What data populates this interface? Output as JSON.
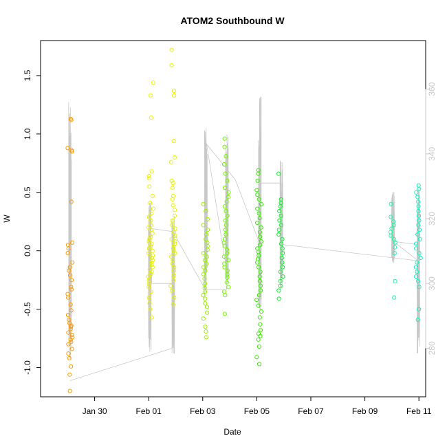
{
  "chart_data": {
    "type": "scatter",
    "title": "ATOM2 Southbound W",
    "xlabel": "Date",
    "ylabel": "W",
    "xlim": [
      "2014-01-28",
      "2014-02-11T06:00"
    ],
    "ylim": [
      -1.25,
      1.8
    ],
    "y2lim": [
      265,
      375
    ],
    "x_ticks": [
      "Jan 30",
      "Feb 01",
      "Feb 03",
      "Feb 05",
      "Feb 07",
      "Feb 09",
      "Feb 11"
    ],
    "x_tick_dates": [
      "2014-01-30",
      "2014-02-01",
      "2014-02-03",
      "2014-02-05",
      "2014-02-07",
      "2014-02-09",
      "2014-02-11"
    ],
    "y_ticks": [
      -1.0,
      -0.5,
      0.0,
      0.5,
      1.0,
      1.5
    ],
    "y_tick_labels": [
      "-1.0",
      "-0.5",
      "0.0",
      "0.5",
      "1.0",
      "1.5"
    ],
    "y2_ticks": [
      280,
      300,
      320,
      340,
      360
    ],
    "y2_tick_labels": [
      "280",
      "300",
      "320",
      "340",
      "360"
    ],
    "grid": false,
    "legend": "none",
    "secondary_line_color": "#c8c8c8",
    "clusters": [
      {
        "time": "2014-01-29T02:10",
        "color": "#ff9a00",
        "w_values": [
          1.13,
          1.12,
          0.88,
          0.86,
          0.85,
          0.42,
          0.07,
          0.05,
          0.02,
          -0.02,
          -0.1,
          -0.14,
          -0.17,
          -0.21,
          -0.25,
          -0.31,
          -0.33,
          -0.37,
          -0.4,
          -0.46,
          -0.51,
          -0.55,
          -0.59,
          -0.62,
          -0.64,
          -0.65,
          -0.67,
          -0.7,
          -0.72,
          -0.74,
          -0.76,
          -0.78,
          -0.8,
          -0.84,
          -0.88,
          -0.92,
          -0.99,
          -1.06,
          -1.2
        ]
      },
      {
        "time": "2014-02-01T02:00",
        "color": "#ecf200",
        "w_values": [
          1.44,
          1.33,
          1.14,
          0.68,
          0.64,
          0.62,
          0.55,
          0.47,
          0.41,
          0.36,
          0.32,
          0.29,
          0.26,
          0.22,
          0.2,
          0.18,
          0.15,
          0.12,
          0.1,
          0.08,
          0.06,
          0.04,
          0.02,
          0.0,
          -0.02,
          -0.04,
          -0.06,
          -0.08,
          -0.1,
          -0.12,
          -0.14,
          -0.16,
          -0.18,
          -0.2,
          -0.22,
          -0.25,
          -0.28,
          -0.31,
          -0.35,
          -0.4,
          -0.45,
          -0.5,
          -0.57
        ]
      },
      {
        "time": "2014-02-01T21:30",
        "color": "#e2f500",
        "w_values": [
          1.72,
          1.59,
          1.37,
          1.33,
          0.94,
          0.8,
          0.76,
          0.6,
          0.58,
          0.54,
          0.47,
          0.44,
          0.39,
          0.35,
          0.3,
          0.26,
          0.22,
          0.19,
          0.16,
          0.13,
          0.1,
          0.08,
          0.06,
          0.04,
          0.02,
          0.0,
          -0.02,
          -0.05,
          -0.08,
          -0.11,
          -0.14,
          -0.17,
          -0.21,
          -0.25,
          -0.3,
          -0.34,
          -0.4,
          -0.46
        ]
      },
      {
        "time": "2014-02-03T02:30",
        "color": "#99f200",
        "w_values": [
          0.4,
          0.34,
          0.27,
          0.22,
          0.18,
          0.14,
          0.1,
          0.07,
          0.04,
          0.01,
          -0.02,
          -0.05,
          -0.08,
          -0.11,
          -0.14,
          -0.17,
          -0.2,
          -0.24,
          -0.28,
          -0.32,
          -0.35,
          -0.38,
          -0.41,
          -0.45,
          -0.48,
          -0.53,
          -0.58,
          -0.65,
          -0.69,
          -0.74
        ]
      },
      {
        "time": "2014-02-03T21:00",
        "color": "#73f500",
        "w_values": [
          0.96,
          0.89,
          0.81,
          0.74,
          0.66,
          0.6,
          0.54,
          0.5,
          0.46,
          0.42,
          0.38,
          0.34,
          0.3,
          0.26,
          0.22,
          0.18,
          0.14,
          0.1,
          0.07,
          0.04,
          0.01,
          -0.02,
          -0.05,
          -0.08,
          -0.11,
          -0.14,
          -0.17,
          -0.2,
          -0.23,
          -0.27,
          -0.31,
          -0.35,
          -0.38,
          -0.54
        ]
      },
      {
        "time": "2014-02-05T02:00",
        "color": "#36ec00",
        "w_values": [
          0.69,
          0.66,
          0.6,
          0.52,
          0.48,
          0.44,
          0.4,
          0.36,
          0.32,
          0.28,
          0.24,
          0.2,
          0.16,
          0.12,
          0.08,
          0.05,
          0.02,
          -0.01,
          -0.04,
          -0.07,
          -0.1,
          -0.14,
          -0.18,
          -0.22,
          -0.26,
          -0.3,
          -0.34,
          -0.38,
          -0.42,
          -0.47,
          -0.52,
          -0.57,
          -0.63,
          -0.68,
          -0.71,
          -0.73,
          -0.76,
          -0.82,
          -0.91,
          -0.97
        ]
      },
      {
        "time": "2014-02-05T21:30",
        "color": "#10f02e",
        "w_values": [
          0.66,
          0.44,
          0.41,
          0.38,
          0.34,
          0.3,
          0.26,
          0.22,
          0.18,
          0.14,
          0.1,
          0.06,
          0.02,
          -0.02,
          -0.06,
          -0.1,
          -0.14,
          -0.18,
          -0.22,
          -0.26,
          -0.3,
          -0.34,
          -0.41
        ]
      },
      {
        "time": "2014-02-10T01:00",
        "color": "#1ff2a2",
        "w_values": [
          0.4,
          0.29,
          0.25,
          0.22,
          0.19,
          0.16,
          0.13,
          0.1,
          0.07,
          0.03,
          -0.02,
          -0.26,
          -0.4
        ]
      },
      {
        "time": "2014-02-10T23:30",
        "color": "#0ef4c0",
        "w_values": [
          0.56,
          0.53,
          0.5,
          0.46,
          0.42,
          0.38,
          0.34,
          0.3,
          0.26,
          0.22,
          0.18,
          0.14,
          0.1,
          0.06,
          0.02,
          -0.02,
          -0.06,
          -0.1,
          -0.14,
          -0.18,
          -0.22,
          -0.26,
          -0.31,
          -0.5,
          -0.59
        ]
      }
    ],
    "secondary_bursts": [
      {
        "time": "2014-01-29T02:10",
        "min": 275,
        "max": 356
      },
      {
        "time": "2014-02-01T01:00",
        "min": 279,
        "max": 325
      },
      {
        "time": "2014-02-01T21:50",
        "min": 278,
        "max": 322
      },
      {
        "time": "2014-02-03T02:50",
        "min": 296,
        "max": 348
      },
      {
        "time": "2014-02-03T21:30",
        "min": 300,
        "max": 346
      },
      {
        "time": "2014-02-05T02:45",
        "min": 291,
        "max": 359
      },
      {
        "time": "2014-02-05T21:50",
        "min": 298,
        "max": 338
      },
      {
        "time": "2014-02-10T01:00",
        "min": 306,
        "max": 329
      },
      {
        "time": "2014-02-10T23:30",
        "min": 278,
        "max": 330
      }
    ],
    "secondary_connector": [
      {
        "time": "2014-01-29T02:10",
        "value": 270
      },
      {
        "time": "2014-02-01T21:00",
        "value": 280
      },
      {
        "time": "2014-02-01T22:30",
        "value": 300
      },
      {
        "time": "2014-02-01T02:40",
        "value": 300
      },
      {
        "time": "2014-02-01T02:00",
        "value": 317
      },
      {
        "time": "2014-02-01T21:30",
        "value": 316
      },
      {
        "time": "2014-02-03T02:30",
        "value": 298
      },
      {
        "time": "2014-02-03T21:00",
        "value": 298
      },
      {
        "time": "2014-02-03T21:10",
        "value": 304
      },
      {
        "time": "2014-02-03T03:30",
        "value": 343
      },
      {
        "time": "2014-02-04T05:00",
        "value": 332
      },
      {
        "time": "2014-02-05T04:00",
        "value": 311
      },
      {
        "time": "2014-02-05T02:30",
        "value": 331
      },
      {
        "time": "2014-02-05T21:00",
        "value": 331
      },
      {
        "time": "2014-02-05T23:00",
        "value": 312
      },
      {
        "time": "2014-02-10T23:30",
        "value": 307
      },
      {
        "time": "2014-02-10T01:00",
        "value": 313
      },
      {
        "time": "2014-02-10T23:00",
        "value": 312
      }
    ]
  }
}
